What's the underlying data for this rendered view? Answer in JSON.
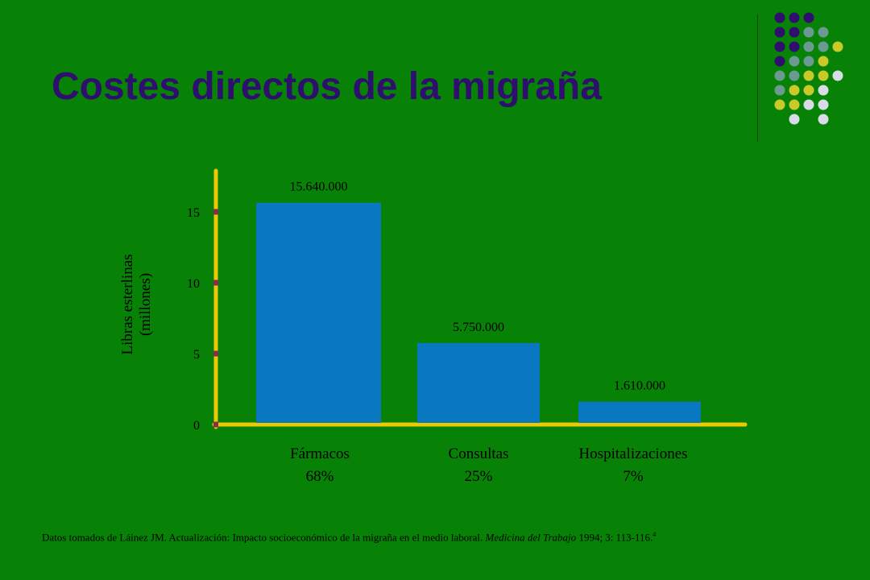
{
  "title": "Costes directos de la migraña",
  "decoration": {
    "colors": {
      "purple": "#2e0f6e",
      "slate": "#6b9a92",
      "yellow": "#c9c92a",
      "light": "#d8dce6"
    },
    "rows": [
      [
        "",
        "purple",
        "purple",
        "purple",
        "",
        ""
      ],
      [
        "",
        "purple",
        "purple",
        "slate",
        "slate",
        ""
      ],
      [
        "",
        "purple",
        "purple",
        "slate",
        "slate",
        "yellow"
      ],
      [
        "",
        "purple",
        "slate",
        "slate",
        "yellow",
        ""
      ],
      [
        "",
        "slate",
        "slate",
        "yellow",
        "yellow",
        "light"
      ],
      [
        "",
        "slate",
        "yellow",
        "yellow",
        "light",
        ""
      ],
      [
        "",
        "yellow",
        "yellow",
        "light",
        "light",
        ""
      ],
      [
        "",
        "",
        "light",
        "",
        "light",
        ""
      ]
    ]
  },
  "chart_data": {
    "type": "bar",
    "categories": [
      "Fármacos",
      "Consultas",
      "Hospitalizaciones"
    ],
    "percentages": [
      "68%",
      "25%",
      "7%"
    ],
    "values": [
      15.64,
      5.75,
      1.61
    ],
    "data_labels": [
      "15.640.000",
      "5.750.000",
      "1.610.000"
    ],
    "ylabel": "Libras esterlinas (millones)",
    "ylabel_lines": [
      "Libras esterlinas",
      "(millones)"
    ],
    "yticks": [
      0,
      5,
      10,
      15
    ],
    "ylim": [
      0,
      18
    ],
    "grid": false,
    "colors": {
      "bar": "#0a78c0",
      "axis": "#f0c800",
      "tick": "#8b2a55",
      "text": "#000000"
    }
  },
  "footnote": {
    "text_before": "Datos tomados de Láinez JM. Actualización: Impacto socioeconómico de la migraña en el medio laboral. ",
    "journal": "Medicina del Trabajo",
    "text_after": " 1994; 3: 113-116.",
    "ref": "4"
  }
}
